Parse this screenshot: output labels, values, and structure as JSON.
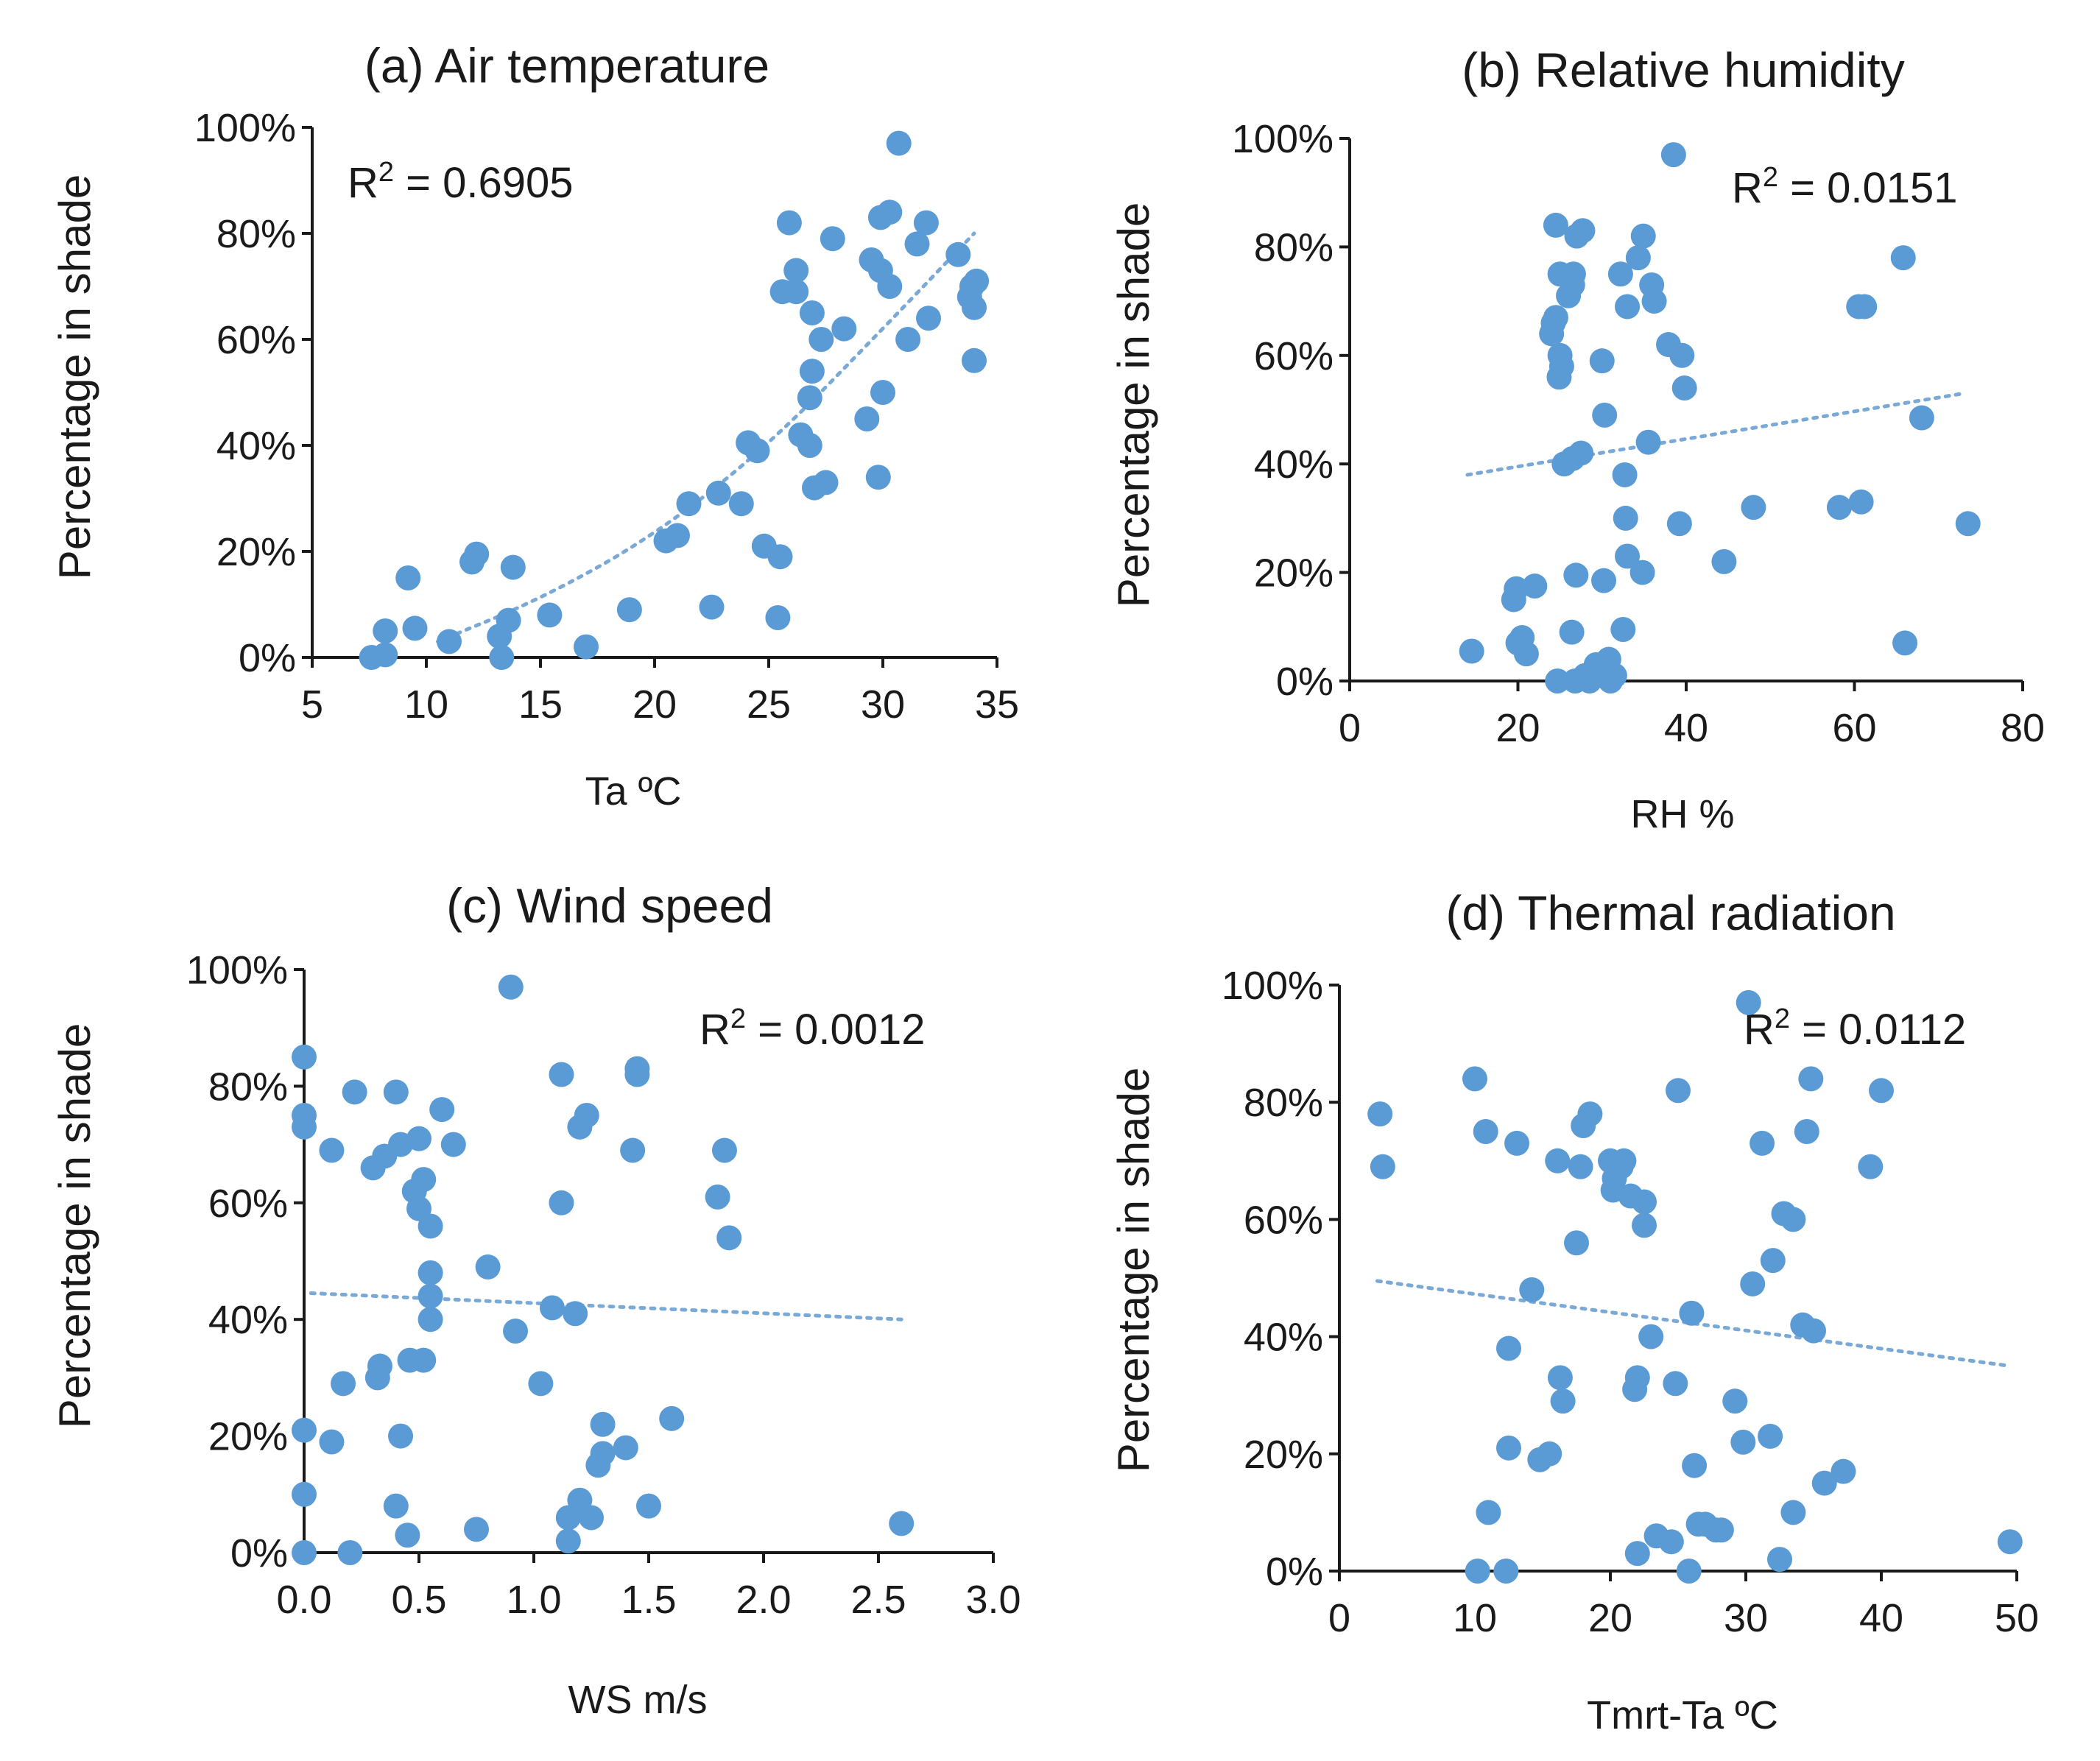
{
  "colors": {
    "point": "#5b9bd5",
    "trend": "#7aa9d6"
  },
  "chart_data": [
    {
      "type": "scatter",
      "title": "(a) Air temperature",
      "xlabel": "Ta ºC",
      "ylabel": "Percentage in shade",
      "r2_text": "0.6905",
      "xlim": [
        5,
        35
      ],
      "ylim": [
        0,
        100
      ],
      "x_ticks": [
        "5",
        "10",
        "15",
        "20",
        "25",
        "30",
        "35"
      ],
      "y_ticks": [
        "0%",
        "20%",
        "40%",
        "60%",
        "80%",
        "100%"
      ],
      "x_tick_values": [
        5,
        10,
        15,
        20,
        25,
        30,
        35
      ],
      "trendline": {
        "kind": "curve",
        "points": [
          [
            10.5,
            3
          ],
          [
            15,
            11
          ],
          [
            20,
            23
          ],
          [
            25,
            40
          ],
          [
            30,
            62
          ],
          [
            34,
            80
          ]
        ]
      },
      "points": [
        [
          7.6,
          0
        ],
        [
          8.2,
          0.5
        ],
        [
          8.2,
          5
        ],
        [
          9.2,
          15
        ],
        [
          9.5,
          5.5
        ],
        [
          11,
          3
        ],
        [
          12,
          18
        ],
        [
          12.2,
          19.5
        ],
        [
          13.2,
          4
        ],
        [
          13.3,
          0
        ],
        [
          13.6,
          7
        ],
        [
          13.8,
          17
        ],
        [
          15.4,
          8
        ],
        [
          17,
          2
        ],
        [
          18.9,
          9
        ],
        [
          20.5,
          22
        ],
        [
          21,
          23
        ],
        [
          21.5,
          29
        ],
        [
          22.5,
          9.5
        ],
        [
          22.8,
          31
        ],
        [
          23.8,
          29
        ],
        [
          24.1,
          40.5
        ],
        [
          24.5,
          39
        ],
        [
          24.8,
          21
        ],
        [
          25.4,
          7.5
        ],
        [
          25.5,
          19
        ],
        [
          25.6,
          69
        ],
        [
          25.9,
          82
        ],
        [
          26.2,
          69
        ],
        [
          26.2,
          73
        ],
        [
          26.4,
          42
        ],
        [
          26.8,
          40
        ],
        [
          26.8,
          49
        ],
        [
          26.9,
          54
        ],
        [
          26.9,
          65
        ],
        [
          27,
          32
        ],
        [
          27.3,
          60
        ],
        [
          27.5,
          33
        ],
        [
          27.8,
          79
        ],
        [
          28.3,
          62
        ],
        [
          29.3,
          45
        ],
        [
          29.5,
          75
        ],
        [
          29.8,
          34
        ],
        [
          29.9,
          73
        ],
        [
          30,
          50
        ],
        [
          29.9,
          83
        ],
        [
          30.3,
          84
        ],
        [
          30.3,
          70
        ],
        [
          30.7,
          97
        ],
        [
          31.1,
          60
        ],
        [
          31.5,
          78
        ],
        [
          31.9,
          82
        ],
        [
          32,
          64
        ],
        [
          33.3,
          76
        ],
        [
          33.8,
          68
        ],
        [
          33.9,
          70
        ],
        [
          34,
          56
        ],
        [
          34.1,
          71
        ],
        [
          34,
          66
        ]
      ]
    },
    {
      "type": "scatter",
      "title": "(b) Relative humidity",
      "xlabel": "RH %",
      "ylabel": "Percentage in shade",
      "r2_text": "0.0151",
      "xlim": [
        0,
        80
      ],
      "ylim": [
        0,
        100
      ],
      "x_ticks": [
        "0",
        "20",
        "40",
        "60",
        "80"
      ],
      "y_ticks": [
        "0%",
        "20%",
        "40%",
        "60%",
        "80%",
        "100%"
      ],
      "x_tick_values": [
        0,
        20,
        40,
        60,
        80
      ],
      "trendline": {
        "kind": "line",
        "points": [
          [
            14,
            38
          ],
          [
            73,
            53
          ]
        ]
      },
      "points": [
        [
          14.5,
          5.5
        ],
        [
          19.5,
          15
        ],
        [
          19.8,
          17
        ],
        [
          20,
          7
        ],
        [
          20.5,
          8
        ],
        [
          21,
          5
        ],
        [
          22,
          17.5
        ],
        [
          24,
          64
        ],
        [
          24.2,
          66
        ],
        [
          24.5,
          84
        ],
        [
          24.5,
          67
        ],
        [
          24.7,
          0
        ],
        [
          24.9,
          56
        ],
        [
          25,
          60
        ],
        [
          25,
          75
        ],
        [
          25.2,
          58
        ],
        [
          25.5,
          40
        ],
        [
          26,
          71
        ],
        [
          26.4,
          9
        ],
        [
          26.5,
          41
        ],
        [
          26.5,
          73
        ],
        [
          26.6,
          75
        ],
        [
          26.8,
          0
        ],
        [
          26.9,
          19.5
        ],
        [
          27,
          82
        ],
        [
          27.5,
          42
        ],
        [
          27.7,
          83
        ],
        [
          28,
          1
        ],
        [
          28.5,
          0
        ],
        [
          29.3,
          3
        ],
        [
          30,
          59
        ],
        [
          30.2,
          18.5
        ],
        [
          30.3,
          49
        ],
        [
          30.8,
          4
        ],
        [
          31,
          0
        ],
        [
          31.5,
          1
        ],
        [
          32.2,
          75
        ],
        [
          32.5,
          9.5
        ],
        [
          32.7,
          38
        ],
        [
          32.8,
          30
        ],
        [
          33,
          23
        ],
        [
          33,
          69
        ],
        [
          34.3,
          78
        ],
        [
          34.8,
          20
        ],
        [
          34.9,
          82
        ],
        [
          35.5,
          44
        ],
        [
          35.9,
          73
        ],
        [
          36.2,
          70
        ],
        [
          37.9,
          62
        ],
        [
          38.5,
          97
        ],
        [
          39.2,
          29
        ],
        [
          39.5,
          60
        ],
        [
          39.8,
          54
        ],
        [
          44.5,
          22
        ],
        [
          48,
          32
        ],
        [
          58.2,
          32
        ],
        [
          60.5,
          69
        ],
        [
          60.8,
          33
        ],
        [
          61.2,
          69
        ],
        [
          65.8,
          78
        ],
        [
          66,
          7
        ],
        [
          68,
          48.5
        ],
        [
          73.5,
          29
        ]
      ]
    },
    {
      "type": "scatter",
      "title": "(c) Wind speed",
      "xlabel": "WS m/s",
      "ylabel": "Percentage in shade",
      "r2_text": "0.0012",
      "xlim": [
        0,
        3
      ],
      "ylim": [
        0,
        100
      ],
      "x_ticks": [
        "0.0",
        "0.5",
        "1.0",
        "1.5",
        "2.0",
        "2.5",
        "3.0"
      ],
      "y_ticks": [
        "0%",
        "20%",
        "40%",
        "60%",
        "80%",
        "100%"
      ],
      "x_tick_values": [
        0,
        0.5,
        1,
        1.5,
        2,
        2.5,
        3
      ],
      "trendline": {
        "kind": "line",
        "points": [
          [
            0.03,
            44.5
          ],
          [
            2.6,
            40
          ]
        ]
      },
      "points": [
        [
          0,
          85
        ],
        [
          0,
          75
        ],
        [
          0,
          73
        ],
        [
          0,
          21
        ],
        [
          0,
          10
        ],
        [
          0,
          0
        ],
        [
          0.12,
          69
        ],
        [
          0.12,
          19
        ],
        [
          0.17,
          29
        ],
        [
          0.2,
          0
        ],
        [
          0.22,
          79
        ],
        [
          0.3,
          66
        ],
        [
          0.32,
          30
        ],
        [
          0.33,
          32
        ],
        [
          0.35,
          68
        ],
        [
          0.4,
          79
        ],
        [
          0.4,
          8
        ],
        [
          0.42,
          70
        ],
        [
          0.42,
          20
        ],
        [
          0.45,
          3
        ],
        [
          0.46,
          33
        ],
        [
          0.48,
          62
        ],
        [
          0.5,
          71
        ],
        [
          0.5,
          59
        ],
        [
          0.52,
          64
        ],
        [
          0.52,
          33
        ],
        [
          0.55,
          56
        ],
        [
          0.55,
          48
        ],
        [
          0.55,
          44
        ],
        [
          0.55,
          40
        ],
        [
          0.6,
          76
        ],
        [
          0.65,
          70
        ],
        [
          0.75,
          4
        ],
        [
          0.8,
          49
        ],
        [
          0.9,
          97
        ],
        [
          0.92,
          38
        ],
        [
          1.03,
          29
        ],
        [
          1.08,
          42
        ],
        [
          1.12,
          82
        ],
        [
          1.12,
          60
        ],
        [
          1.15,
          2
        ],
        [
          1.15,
          6
        ],
        [
          1.18,
          41
        ],
        [
          1.2,
          9
        ],
        [
          1.2,
          73
        ],
        [
          1.23,
          75
        ],
        [
          1.25,
          6
        ],
        [
          1.28,
          15
        ],
        [
          1.3,
          22
        ],
        [
          1.3,
          17
        ],
        [
          1.4,
          18
        ],
        [
          1.43,
          69
        ],
        [
          1.45,
          83
        ],
        [
          1.45,
          82
        ],
        [
          1.5,
          8
        ],
        [
          1.6,
          23
        ],
        [
          1.8,
          61
        ],
        [
          1.83,
          69
        ],
        [
          1.85,
          54
        ],
        [
          2.6,
          5
        ]
      ]
    },
    {
      "type": "scatter",
      "title": "(d) Thermal radiation",
      "xlabel": "Tmrt-Ta ºC",
      "ylabel": "Percentage in shade",
      "r2_text": "0.0112",
      "xlim": [
        0,
        50
      ],
      "ylim": [
        0,
        100
      ],
      "x_ticks": [
        "0",
        "10",
        "20",
        "30",
        "40",
        "50"
      ],
      "y_ticks": [
        "0%",
        "20%",
        "40%",
        "60%",
        "80%",
        "100%"
      ],
      "x_tick_values": [
        0,
        10,
        20,
        30,
        40,
        50
      ],
      "trendline": {
        "kind": "line",
        "points": [
          [
            2.8,
            49.5
          ],
          [
            49.5,
            35
          ]
        ]
      },
      "points": [
        [
          3,
          78
        ],
        [
          3.2,
          69
        ],
        [
          10,
          84
        ],
        [
          10.2,
          0
        ],
        [
          10.8,
          75
        ],
        [
          11,
          10
        ],
        [
          12.3,
          0
        ],
        [
          12.5,
          21
        ],
        [
          12.5,
          38
        ],
        [
          13.1,
          73
        ],
        [
          14.2,
          48
        ],
        [
          14.8,
          19
        ],
        [
          15.5,
          20
        ],
        [
          16.1,
          70
        ],
        [
          16.3,
          33
        ],
        [
          16.5,
          29
        ],
        [
          17.5,
          56
        ],
        [
          17.8,
          69
        ],
        [
          18,
          76
        ],
        [
          18.5,
          78
        ],
        [
          20,
          70
        ],
        [
          20.2,
          65
        ],
        [
          20.3,
          67
        ],
        [
          20.8,
          69
        ],
        [
          21,
          70
        ],
        [
          21.5,
          64
        ],
        [
          21.8,
          31
        ],
        [
          22,
          33
        ],
        [
          22,
          3
        ],
        [
          22.5,
          63
        ],
        [
          22.5,
          59
        ],
        [
          23,
          40
        ],
        [
          23.4,
          6
        ],
        [
          24.5,
          5
        ],
        [
          24.8,
          32
        ],
        [
          25,
          82
        ],
        [
          25.8,
          0
        ],
        [
          26,
          44
        ],
        [
          26.2,
          18
        ],
        [
          26.5,
          8
        ],
        [
          27,
          8
        ],
        [
          27.8,
          7
        ],
        [
          28.2,
          7
        ],
        [
          29.2,
          29
        ],
        [
          29.8,
          22
        ],
        [
          30.2,
          97
        ],
        [
          30.5,
          49
        ],
        [
          31.2,
          73
        ],
        [
          31.8,
          23
        ],
        [
          32,
          53
        ],
        [
          32.5,
          2
        ],
        [
          32.8,
          61
        ],
        [
          33.5,
          60
        ],
        [
          33.5,
          10
        ],
        [
          34.2,
          42
        ],
        [
          34.5,
          75
        ],
        [
          34.8,
          84
        ],
        [
          35,
          41
        ],
        [
          35.8,
          15
        ],
        [
          37.2,
          17
        ],
        [
          39.2,
          69
        ],
        [
          40,
          82
        ],
        [
          49.5,
          5
        ]
      ]
    }
  ]
}
